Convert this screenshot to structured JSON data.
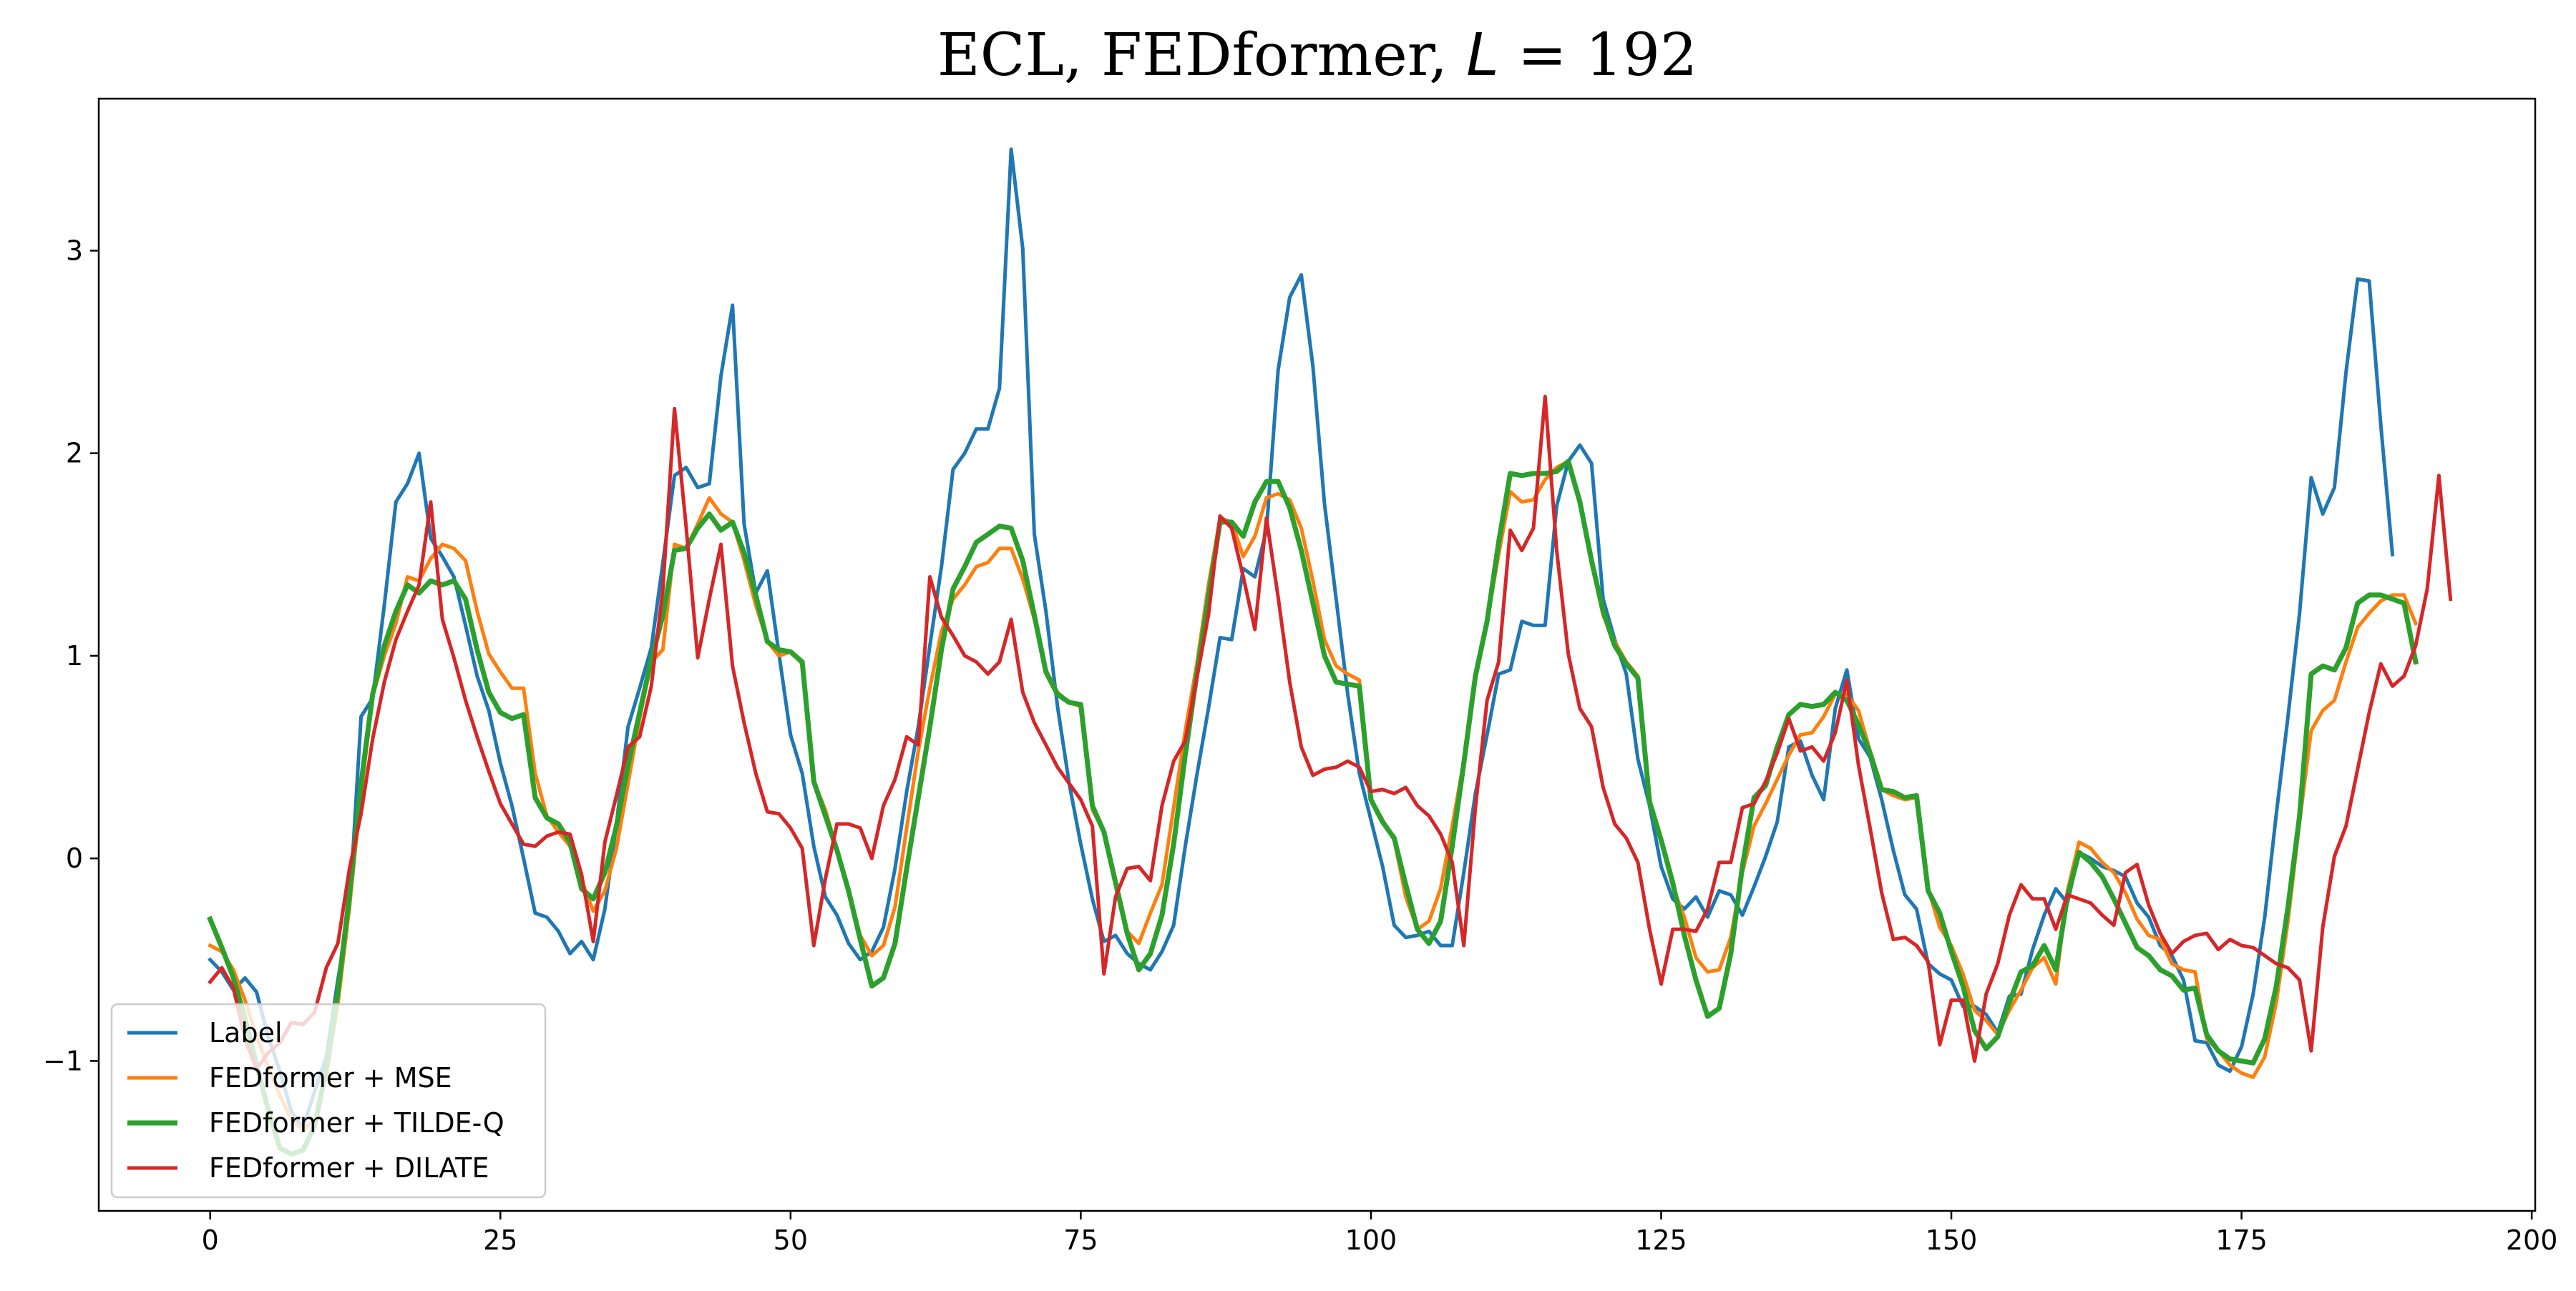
{
  "chart_data": {
    "type": "line",
    "title": "ECL, FEDformer, L = 192",
    "title_parts": {
      "prefix": "ECL, FEDformer, ",
      "var": "L",
      "suffix": " = 192"
    },
    "xlabel": "",
    "ylabel": "",
    "xlim": [
      -9.6,
      200.3
    ],
    "ylim": [
      -1.74,
      3.75
    ],
    "x_ticks": [
      0,
      25,
      50,
      75,
      100,
      125,
      150,
      175,
      200
    ],
    "y_ticks": [
      -1,
      0,
      1,
      2,
      3
    ],
    "grid": false,
    "legend_position": "lower-left",
    "x_step": 1,
    "series": [
      {
        "name": "Label",
        "color": "#1f77b4",
        "values": [
          -0.5,
          -0.56,
          -0.65,
          -0.59,
          -0.66,
          -0.88,
          -1.05,
          -1.25,
          -1.33,
          -1.15,
          -0.98,
          -0.6,
          -0.25,
          0.7,
          0.79,
          1.25,
          1.76,
          1.85,
          2.0,
          1.58,
          1.49,
          1.39,
          1.15,
          0.9,
          0.73,
          0.47,
          0.26,
          0.0,
          -0.27,
          -0.29,
          -0.36,
          -0.47,
          -0.41,
          -0.5,
          -0.25,
          0.17,
          0.65,
          0.84,
          1.04,
          1.46,
          1.89,
          1.93,
          1.83,
          1.85,
          2.38,
          2.73,
          1.65,
          1.31,
          1.42,
          1.01,
          0.61,
          0.42,
          0.06,
          -0.19,
          -0.28,
          -0.42,
          -0.5,
          -0.46,
          -0.34,
          -0.05,
          0.33,
          0.65,
          1.05,
          1.44,
          1.92,
          2.0,
          2.12,
          2.12,
          2.32,
          3.5,
          3.01,
          1.6,
          1.22,
          0.75,
          0.37,
          0.07,
          -0.2,
          -0.41,
          -0.38,
          -0.47,
          -0.52,
          -0.55,
          -0.46,
          -0.33,
          0.06,
          0.41,
          0.74,
          1.09,
          1.08,
          1.43,
          1.39,
          1.62,
          2.41,
          2.77,
          2.88,
          2.43,
          1.75,
          1.28,
          0.81,
          0.42,
          0.19,
          -0.04,
          -0.33,
          -0.39,
          -0.38,
          -0.36,
          -0.43,
          -0.43,
          -0.07,
          0.32,
          0.61,
          0.91,
          0.93,
          1.17,
          1.15,
          1.15,
          1.74,
          1.96,
          2.04,
          1.95,
          1.28,
          1.08,
          0.91,
          0.49,
          0.26,
          -0.04,
          -0.2,
          -0.25,
          -0.19,
          -0.29,
          -0.16,
          -0.18,
          -0.28,
          -0.14,
          0.01,
          0.18,
          0.55,
          0.58,
          0.41,
          0.29,
          0.74,
          0.93,
          0.59,
          0.5,
          0.29,
          0.04,
          -0.18,
          -0.25,
          -0.52,
          -0.57,
          -0.6,
          -0.73,
          -0.73,
          -0.77,
          -0.86,
          -0.68,
          -0.67,
          -0.45,
          -0.28,
          -0.15,
          -0.22,
          0.03,
          0.0,
          -0.04,
          -0.06,
          -0.09,
          -0.22,
          -0.29,
          -0.43,
          -0.48,
          -0.6,
          -0.9,
          -0.91,
          -1.02,
          -1.05,
          -0.93,
          -0.67,
          -0.29,
          0.22,
          0.7,
          1.21,
          1.88,
          1.7,
          1.83,
          2.4,
          2.86,
          2.85,
          2.14,
          1.5
        ]
      },
      {
        "name": "FEDformer + MSE",
        "color": "#ff7f0e",
        "values": [
          -0.43,
          -0.46,
          -0.55,
          -0.7,
          -0.88,
          -1.03,
          -1.17,
          -1.29,
          -1.34,
          -1.29,
          -1.07,
          -0.72,
          -0.24,
          0.32,
          0.8,
          1.0,
          1.16,
          1.39,
          1.37,
          1.48,
          1.55,
          1.53,
          1.47,
          1.22,
          1.01,
          0.92,
          0.84,
          0.84,
          0.42,
          0.21,
          0.13,
          0.06,
          -0.11,
          -0.26,
          -0.16,
          0.05,
          0.37,
          0.69,
          0.97,
          1.03,
          1.55,
          1.53,
          1.65,
          1.78,
          1.7,
          1.66,
          1.47,
          1.25,
          1.07,
          1.0,
          1.02,
          0.96,
          0.38,
          0.24,
          0.04,
          -0.17,
          -0.38,
          -0.48,
          -0.43,
          -0.24,
          0.15,
          0.53,
          0.84,
          1.12,
          1.28,
          1.35,
          1.44,
          1.46,
          1.53,
          1.53,
          1.38,
          1.18,
          0.93,
          0.82,
          0.77,
          0.75,
          0.24,
          0.13,
          -0.1,
          -0.36,
          -0.42,
          -0.27,
          -0.13,
          0.25,
          0.63,
          0.96,
          1.35,
          1.68,
          1.66,
          1.49,
          1.59,
          1.78,
          1.8,
          1.77,
          1.63,
          1.37,
          1.08,
          0.95,
          0.91,
          0.88,
          0.29,
          0.19,
          0.09,
          -0.19,
          -0.35,
          -0.31,
          -0.15,
          0.16,
          0.48,
          0.88,
          1.17,
          1.5,
          1.81,
          1.76,
          1.77,
          1.87,
          1.93,
          1.96,
          1.76,
          1.46,
          1.2,
          1.07,
          0.97,
          0.9,
          0.28,
          0.08,
          -0.14,
          -0.29,
          -0.49,
          -0.56,
          -0.55,
          -0.39,
          -0.07,
          0.16,
          0.27,
          0.39,
          0.51,
          0.61,
          0.62,
          0.7,
          0.81,
          0.81,
          0.73,
          0.53,
          0.34,
          0.31,
          0.29,
          0.3,
          -0.15,
          -0.34,
          -0.43,
          -0.57,
          -0.75,
          -0.8,
          -0.87,
          -0.75,
          -0.65,
          -0.54,
          -0.49,
          -0.62,
          -0.16,
          0.08,
          0.05,
          -0.02,
          -0.07,
          -0.17,
          -0.3,
          -0.38,
          -0.4,
          -0.52,
          -0.55,
          -0.56,
          -0.89,
          -0.95,
          -1.02,
          -1.06,
          -1.08,
          -0.98,
          -0.71,
          -0.31,
          0.18,
          0.63,
          0.73,
          0.78,
          0.97,
          1.14,
          1.21,
          1.27,
          1.3,
          1.3,
          1.16
        ]
      },
      {
        "name": "FEDformer + TILDE-Q",
        "color": "#2ca02c",
        "values": [
          -0.3,
          -0.44,
          -0.59,
          -0.79,
          -1.02,
          -1.24,
          -1.43,
          -1.46,
          -1.44,
          -1.32,
          -1.04,
          -0.66,
          -0.18,
          0.37,
          0.81,
          1.05,
          1.22,
          1.35,
          1.31,
          1.37,
          1.35,
          1.37,
          1.28,
          1.03,
          0.82,
          0.72,
          0.69,
          0.71,
          0.3,
          0.2,
          0.17,
          0.08,
          -0.15,
          -0.2,
          -0.07,
          0.16,
          0.46,
          0.72,
          0.98,
          1.2,
          1.52,
          1.53,
          1.63,
          1.7,
          1.62,
          1.66,
          1.51,
          1.3,
          1.07,
          1.03,
          1.02,
          0.97,
          0.38,
          0.21,
          0.04,
          -0.16,
          -0.4,
          -0.63,
          -0.59,
          -0.42,
          -0.05,
          0.3,
          0.65,
          1.03,
          1.33,
          1.44,
          1.56,
          1.6,
          1.64,
          1.63,
          1.47,
          1.2,
          0.92,
          0.81,
          0.77,
          0.76,
          0.26,
          0.13,
          -0.12,
          -0.37,
          -0.55,
          -0.47,
          -0.28,
          0.07,
          0.51,
          0.91,
          1.29,
          1.66,
          1.66,
          1.59,
          1.76,
          1.86,
          1.86,
          1.73,
          1.52,
          1.26,
          1.0,
          0.87,
          0.86,
          0.85,
          0.29,
          0.18,
          0.1,
          -0.13,
          -0.35,
          -0.42,
          -0.31,
          0.06,
          0.47,
          0.9,
          1.17,
          1.56,
          1.9,
          1.89,
          1.9,
          1.9,
          1.91,
          1.96,
          1.76,
          1.47,
          1.22,
          1.05,
          0.96,
          0.89,
          0.28,
          0.09,
          -0.12,
          -0.38,
          -0.6,
          -0.78,
          -0.74,
          -0.47,
          -0.04,
          0.3,
          0.36,
          0.55,
          0.71,
          0.76,
          0.75,
          0.76,
          0.82,
          0.78,
          0.66,
          0.52,
          0.34,
          0.33,
          0.3,
          0.31,
          -0.16,
          -0.27,
          -0.46,
          -0.63,
          -0.85,
          -0.94,
          -0.88,
          -0.71,
          -0.56,
          -0.53,
          -0.43,
          -0.55,
          -0.19,
          0.03,
          -0.02,
          -0.09,
          -0.2,
          -0.32,
          -0.44,
          -0.48,
          -0.55,
          -0.58,
          -0.65,
          -0.64,
          -0.87,
          -0.95,
          -0.99,
          -1.0,
          -1.01,
          -0.89,
          -0.63,
          -0.24,
          0.21,
          0.91,
          0.95,
          0.93,
          1.04,
          1.26,
          1.3,
          1.3,
          1.28,
          1.26,
          0.97
        ]
      },
      {
        "name": "FEDformer + DILATE",
        "color": "#d62728",
        "values": [
          -0.61,
          -0.54,
          -0.64,
          -0.89,
          -1.04,
          -0.96,
          -0.91,
          -0.81,
          -0.82,
          -0.76,
          -0.54,
          -0.42,
          -0.05,
          0.22,
          0.59,
          0.87,
          1.08,
          1.22,
          1.35,
          1.76,
          1.18,
          0.99,
          0.78,
          0.6,
          0.43,
          0.27,
          0.17,
          0.07,
          0.06,
          0.11,
          0.13,
          0.12,
          -0.08,
          -0.41,
          0.08,
          0.31,
          0.55,
          0.6,
          0.85,
          1.33,
          2.22,
          1.64,
          0.99,
          1.28,
          1.55,
          0.95,
          0.67,
          0.42,
          0.23,
          0.22,
          0.15,
          0.05,
          -0.43,
          -0.1,
          0.17,
          0.17,
          0.15,
          0.0,
          0.26,
          0.39,
          0.6,
          0.56,
          1.39,
          1.19,
          1.1,
          1.0,
          0.97,
          0.91,
          0.97,
          1.18,
          0.82,
          0.67,
          0.56,
          0.45,
          0.37,
          0.29,
          0.16,
          -0.57,
          -0.19,
          -0.05,
          -0.04,
          -0.11,
          0.26,
          0.48,
          0.58,
          0.89,
          1.2,
          1.69,
          1.63,
          1.39,
          1.13,
          1.68,
          1.29,
          0.87,
          0.55,
          0.41,
          0.44,
          0.45,
          0.48,
          0.45,
          0.33,
          0.34,
          0.32,
          0.35,
          0.26,
          0.21,
          0.12,
          -0.02,
          -0.43,
          0.25,
          0.78,
          0.97,
          1.62,
          1.52,
          1.63,
          2.28,
          1.52,
          1.01,
          0.74,
          0.65,
          0.35,
          0.17,
          0.1,
          -0.02,
          -0.35,
          -0.62,
          -0.35,
          -0.35,
          -0.36,
          -0.25,
          -0.02,
          -0.02,
          0.25,
          0.27,
          0.38,
          0.52,
          0.69,
          0.53,
          0.55,
          0.48,
          0.62,
          0.88,
          0.46,
          0.15,
          -0.17,
          -0.4,
          -0.39,
          -0.43,
          -0.51,
          -0.92,
          -0.7,
          -0.7,
          -1.0,
          -0.67,
          -0.52,
          -0.28,
          -0.13,
          -0.2,
          -0.2,
          -0.35,
          -0.18,
          -0.2,
          -0.22,
          -0.28,
          -0.33,
          -0.07,
          -0.03,
          -0.23,
          -0.37,
          -0.47,
          -0.41,
          -0.38,
          -0.37,
          -0.45,
          -0.4,
          -0.43,
          -0.44,
          -0.48,
          -0.52,
          -0.54,
          -0.6,
          -0.95,
          -0.34,
          0.01,
          0.16,
          0.44,
          0.72,
          0.96,
          0.85,
          0.9,
          1.05,
          1.33,
          1.89,
          1.28
        ]
      }
    ]
  }
}
